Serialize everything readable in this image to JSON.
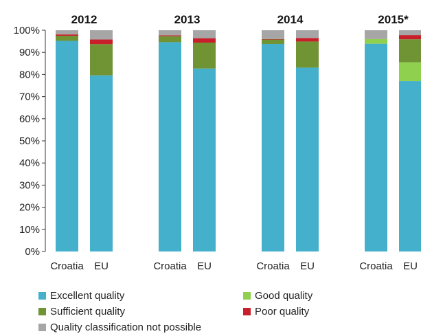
{
  "chart_data": {
    "type": "bar",
    "stacked": true,
    "groups": [
      "2012",
      "2013",
      "2014",
      "2015*"
    ],
    "categories": [
      "Croatia",
      "EU"
    ],
    "ylim": [
      0,
      100
    ],
    "yticks": [
      "0%",
      "10%",
      "20%",
      "30%",
      "40%",
      "50%",
      "60%",
      "70%",
      "80%",
      "90%",
      "100%"
    ],
    "ytick_values": [
      0,
      10,
      20,
      30,
      40,
      50,
      60,
      70,
      80,
      90,
      100
    ],
    "grid": false,
    "legend_position": "bottom",
    "series": [
      {
        "name": "Excellent quality",
        "color": "#45b0cc",
        "values": [
          [
            95.2,
            79.6
          ],
          [
            94.6,
            82.7
          ],
          [
            93.8,
            83.1
          ],
          [
            93.9,
            77.0
          ]
        ]
      },
      {
        "name": "Good quality",
        "color": "#8fd04f",
        "values": [
          [
            0,
            0
          ],
          [
            0,
            0
          ],
          [
            0,
            0
          ],
          [
            2.1,
            8.5
          ]
        ]
      },
      {
        "name": "Sufficient quality",
        "color": "#709334",
        "values": [
          [
            2.3,
            14.1
          ],
          [
            2.7,
            11.7
          ],
          [
            2.0,
            11.8
          ],
          [
            0,
            10.4
          ]
        ]
      },
      {
        "name": "Poor quality",
        "color": "#c8202a",
        "values": [
          [
            0.6,
            2.1
          ],
          [
            0.4,
            2.0
          ],
          [
            0.2,
            1.6
          ],
          [
            0,
            1.9
          ]
        ]
      },
      {
        "name": "Quality classification not possible",
        "color": "#a6a6a6",
        "values": [
          [
            1.9,
            4.2
          ],
          [
            2.3,
            3.6
          ],
          [
            4.0,
            3.5
          ],
          [
            4.0,
            2.2
          ]
        ]
      }
    ]
  }
}
